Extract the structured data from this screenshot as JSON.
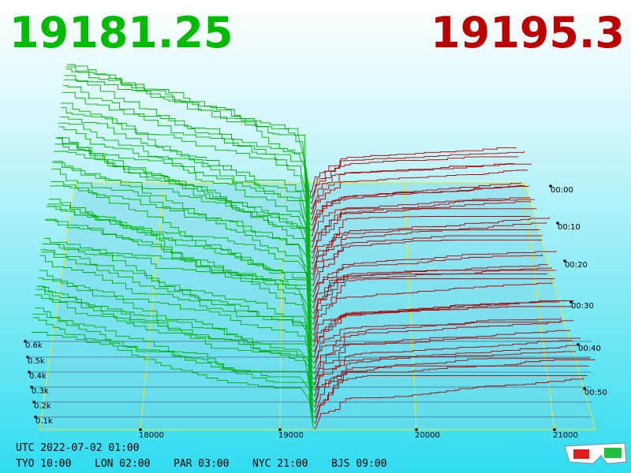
{
  "header": {
    "bid": "19181.25",
    "ask": "19195.3"
  },
  "axes": {
    "price_ticks": [
      "18000",
      "19000",
      "20000",
      "21000"
    ],
    "volume_ticks": [
      "0.1k",
      "0.2k",
      "0.3k",
      "0.4k",
      "0.5k",
      "0.6k"
    ],
    "time_ticks": [
      "00:00",
      "00:10",
      "00:20",
      "00:30",
      "00:40",
      "00:50"
    ]
  },
  "footer": {
    "utc": "UTC 2022-07-02 01:00",
    "clocks": [
      "TYO 10:00",
      "LON 02:00",
      "PAR 03:00",
      "NYC 21:00",
      "BJS 09:00"
    ]
  }
}
